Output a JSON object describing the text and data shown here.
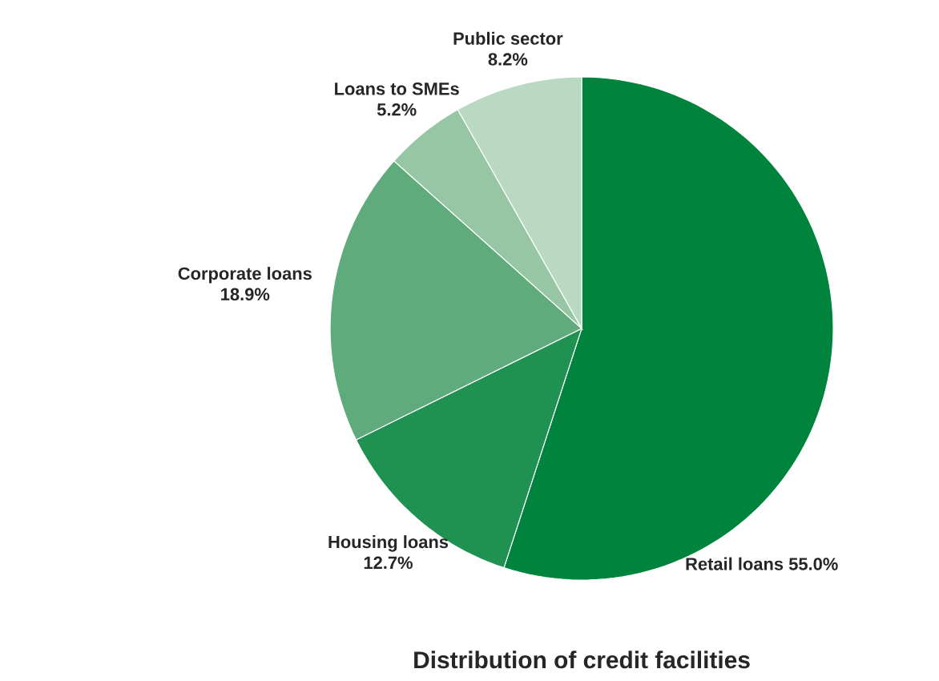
{
  "chart_data": {
    "type": "pie",
    "title": "Distribution of credit facilities",
    "categories": [
      "Retail loans",
      "Housing loans",
      "Corporate loans",
      "Loans to SMEs",
      "Public sector"
    ],
    "values": [
      55.0,
      12.7,
      18.9,
      5.2,
      8.2
    ],
    "value_labels": [
      "55.0%",
      "12.7%",
      "18.9%",
      "5.2%",
      "8.2%"
    ],
    "colors": [
      "#00843d",
      "#1f9150",
      "#5fab7b",
      "#96c6a4",
      "#bad9c2"
    ]
  }
}
